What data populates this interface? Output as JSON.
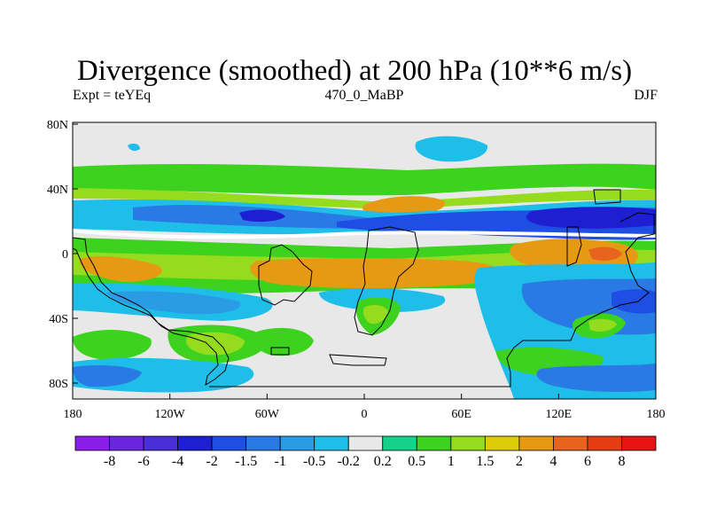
{
  "title": "Divergence (smoothed) at 200 hPa (10**6 m/s)",
  "subtitle_left": "Expt = teYEq",
  "subtitle_center": "470_0_MaBP",
  "subtitle_right": "DJF",
  "lat_labels": [
    "80N",
    "40N",
    "0",
    "40S",
    "80S"
  ],
  "lon_labels": [
    "180",
    "120W",
    "60W",
    "0",
    "60E",
    "120E",
    "180"
  ],
  "colorbar": {
    "labels": [
      "-8",
      "-6",
      "-4",
      "-2",
      "-1.5",
      "-1",
      "-0.5",
      "-0.2",
      "0.2",
      "0.5",
      "1",
      "1.5",
      "2",
      "4",
      "6",
      "8"
    ],
    "colors": [
      "#8a1ee8",
      "#6a26de",
      "#4a2ed6",
      "#1e1ed2",
      "#1e4ee4",
      "#2a7ae6",
      "#2a9ce6",
      "#1ebee8",
      "#e8e8e8",
      "#14d28c",
      "#3cd21e",
      "#96dc1e",
      "#dccc0a",
      "#e69a14",
      "#e6641e",
      "#e63c14",
      "#e61414"
    ]
  },
  "palette": {
    "neutral": "#e8e8e8",
    "lightblue": "#1ebee8",
    "midblue": "#2a9ce6",
    "blue": "#2a7ae6",
    "deepblue": "#1e4ee4",
    "navy": "#1e1ed2",
    "teal": "#14d28c",
    "green": "#3cd21e",
    "yellowgreen": "#96dc1e",
    "yellow": "#dccc0a",
    "orange": "#e69a14",
    "darkorange": "#e6641e",
    "white": "#ffffff"
  }
}
